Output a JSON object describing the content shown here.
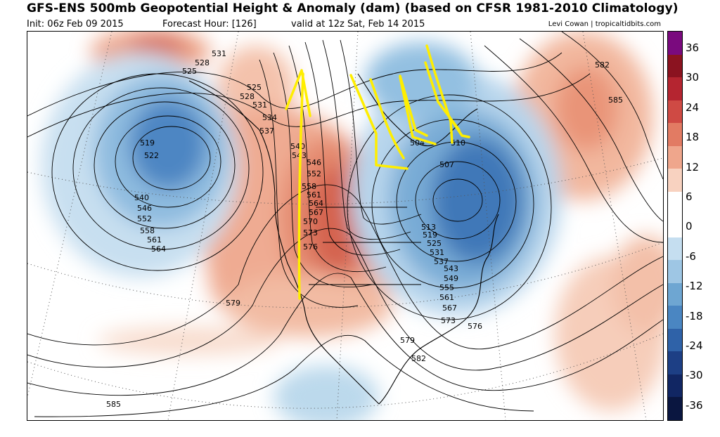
{
  "header": {
    "title": "GFS-ENS 500mb Geopotential Height & Anomaly (dam) (based on CFSR 1981-2010 Climatology)",
    "init": "Init: 06z Feb 09 2015",
    "forecast_hour": "Forecast Hour: [126]",
    "valid": "valid at 12z Sat, Feb 14 2015",
    "credit": "Levi Cowan | tropicaltidbits.com"
  },
  "colorbar": {
    "labels": [
      "36",
      "30",
      "24",
      "18",
      "12",
      "6",
      "0",
      "-6",
      "-12",
      "-18",
      "-24",
      "-30",
      "-36"
    ],
    "colors": [
      "#7a0a7e",
      "#8b1320",
      "#b52530",
      "#cf4a44",
      "#e27b63",
      "#efa68c",
      "#f8d2c0",
      "#ffffff",
      "#ffffff",
      "#c5def0",
      "#9ec6e4",
      "#6ea6d2",
      "#4a86c2",
      "#2f62a8",
      "#1d3f85",
      "#112663",
      "#0a1640"
    ]
  },
  "map": {
    "anomaly_colors": {
      "warm_light": "#f5c6b0",
      "warm_mid": "#e9977b",
      "warm_deep": "#cd5a4a",
      "cool_light": "#bcd9ec",
      "cool_mid": "#7db1d9",
      "cool_deep": "#2f6cb3"
    },
    "contour_labels": [
      "531",
      "528",
      "525",
      "525",
      "528",
      "531",
      "534",
      "537",
      "540",
      "543",
      "546",
      "552",
      "558",
      "561",
      "564",
      "567",
      "570",
      "573",
      "576",
      "579",
      "519",
      "522",
      "540",
      "546",
      "552",
      "558",
      "561",
      "564",
      "582",
      "585",
      "504",
      "507",
      "510",
      "513",
      "519",
      "525",
      "531",
      "537",
      "543",
      "549",
      "555",
      "561",
      "567",
      "573",
      "576",
      "579",
      "582",
      "585"
    ],
    "annotation_color": "#ffee00"
  }
}
